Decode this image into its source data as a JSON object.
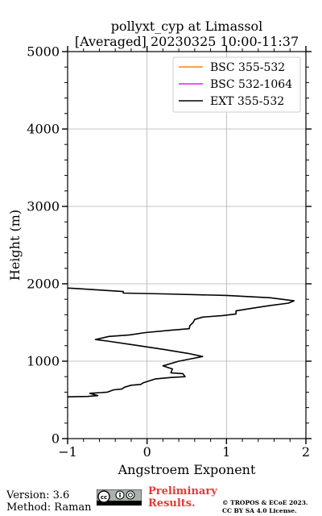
{
  "chart_data": {
    "type": "line",
    "title_line1": "pollyxt_cyp at Limassol",
    "title_line2": "[Averaged] 20230325 10:00-11:37",
    "xlabel": "Angstroem Exponent",
    "ylabel": "Height (m)",
    "xlim": [
      -1,
      2
    ],
    "ylim": [
      0,
      5000
    ],
    "xticks": [
      "−1",
      "0",
      "1",
      "2"
    ],
    "yticks": [
      "0",
      "1000",
      "2000",
      "3000",
      "4000",
      "5000"
    ],
    "grid": true,
    "legend_position": "top-right",
    "series": [
      {
        "name": "BSC 355-532",
        "color": "#ff7f0e",
        "points": []
      },
      {
        "name": "BSC 532-1064",
        "color": "#e520e5",
        "points": []
      },
      {
        "name": "EXT 355-532",
        "color": "#000000",
        "points": [
          [
            -1.0,
            540
          ],
          [
            -0.75,
            545
          ],
          [
            -0.62,
            555
          ],
          [
            -0.72,
            585
          ],
          [
            -0.5,
            600
          ],
          [
            -0.42,
            630
          ],
          [
            -0.32,
            640
          ],
          [
            -0.28,
            665
          ],
          [
            -0.2,
            690
          ],
          [
            -0.08,
            700
          ],
          [
            -0.05,
            720
          ],
          [
            0.1,
            770
          ],
          [
            0.3,
            790
          ],
          [
            0.48,
            800
          ],
          [
            0.45,
            840
          ],
          [
            0.3,
            850
          ],
          [
            0.32,
            900
          ],
          [
            0.2,
            940
          ],
          [
            0.4,
            1000
          ],
          [
            0.55,
            1030
          ],
          [
            0.7,
            1060
          ],
          [
            0.52,
            1100
          ],
          [
            0.22,
            1150
          ],
          [
            -0.1,
            1200
          ],
          [
            -0.5,
            1260
          ],
          [
            -0.65,
            1280
          ],
          [
            -0.48,
            1320
          ],
          [
            -0.22,
            1340
          ],
          [
            -0.02,
            1370
          ],
          [
            0.3,
            1400
          ],
          [
            0.53,
            1420
          ],
          [
            0.54,
            1460
          ],
          [
            0.58,
            1500
          ],
          [
            0.6,
            1540
          ],
          [
            0.7,
            1570
          ],
          [
            0.95,
            1590
          ],
          [
            1.12,
            1610
          ],
          [
            1.12,
            1650
          ],
          [
            1.3,
            1680
          ],
          [
            1.55,
            1720
          ],
          [
            1.78,
            1750
          ],
          [
            1.85,
            1780
          ],
          [
            1.55,
            1820
          ],
          [
            1.0,
            1850
          ],
          [
            0.2,
            1870
          ],
          [
            -0.3,
            1880
          ],
          [
            -0.3,
            1900
          ],
          [
            -0.6,
            1920
          ],
          [
            -0.9,
            1940
          ],
          [
            -1.0,
            1945
          ]
        ]
      }
    ]
  },
  "footer": {
    "version": "Version: 3.6",
    "method": "Method: Raman",
    "preliminary_line1": "Preliminary",
    "preliminary_line2": "Results.",
    "copyright_line1": "© TROPOS & ECoE 2023.",
    "copyright_line2": "CC BY SA 4.0 License."
  }
}
